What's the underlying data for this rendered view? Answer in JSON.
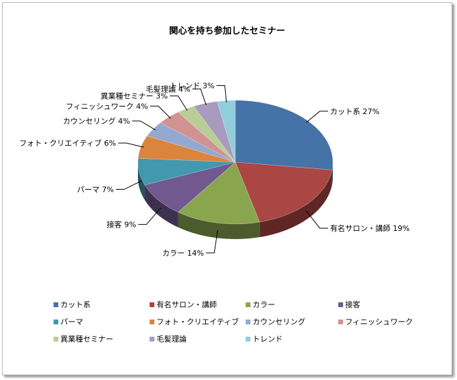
{
  "chart_data": {
    "type": "pie",
    "title": "関心を持ち参加したセミナー",
    "style": "3d-exploded-none",
    "legend_position": "bottom",
    "slices": [
      {
        "name": "カット系",
        "value": 27,
        "label": "カット系 27%",
        "color": "#4572a7"
      },
      {
        "name": "有名サロン・講師",
        "value": 19,
        "label": "有名サロン・講師 19%",
        "color": "#aa4643"
      },
      {
        "name": "カラー",
        "value": 14,
        "label": "カラー 14%",
        "color": "#89a54e"
      },
      {
        "name": "接客",
        "value": 9,
        "label": "接客 9%",
        "color": "#71588f"
      },
      {
        "name": "パーマ",
        "value": 7,
        "label": "パーマ 7%",
        "color": "#4198af"
      },
      {
        "name": "フォト・クリエイティブ",
        "value": 6,
        "label": "フォト・クリエイティブ 6%",
        "color": "#db843d"
      },
      {
        "name": "カウンセリング",
        "value": 4,
        "label": "カウンセリング 4%",
        "color": "#93a9cf"
      },
      {
        "name": "フィニッシュワーク",
        "value": 4,
        "label": "フィニッシュワーク 4%",
        "color": "#d19392"
      },
      {
        "name": "異業種セミナー",
        "value": 3,
        "label": "異業種セミナー 3%",
        "color": "#b9cd96"
      },
      {
        "name": "毛髪理論",
        "value": 4,
        "label": "毛髪理論 4%",
        "color": "#a99bbd"
      },
      {
        "name": "トレンド",
        "value": 3,
        "label": "トレンド 3%",
        "color": "#92cddc"
      }
    ]
  }
}
